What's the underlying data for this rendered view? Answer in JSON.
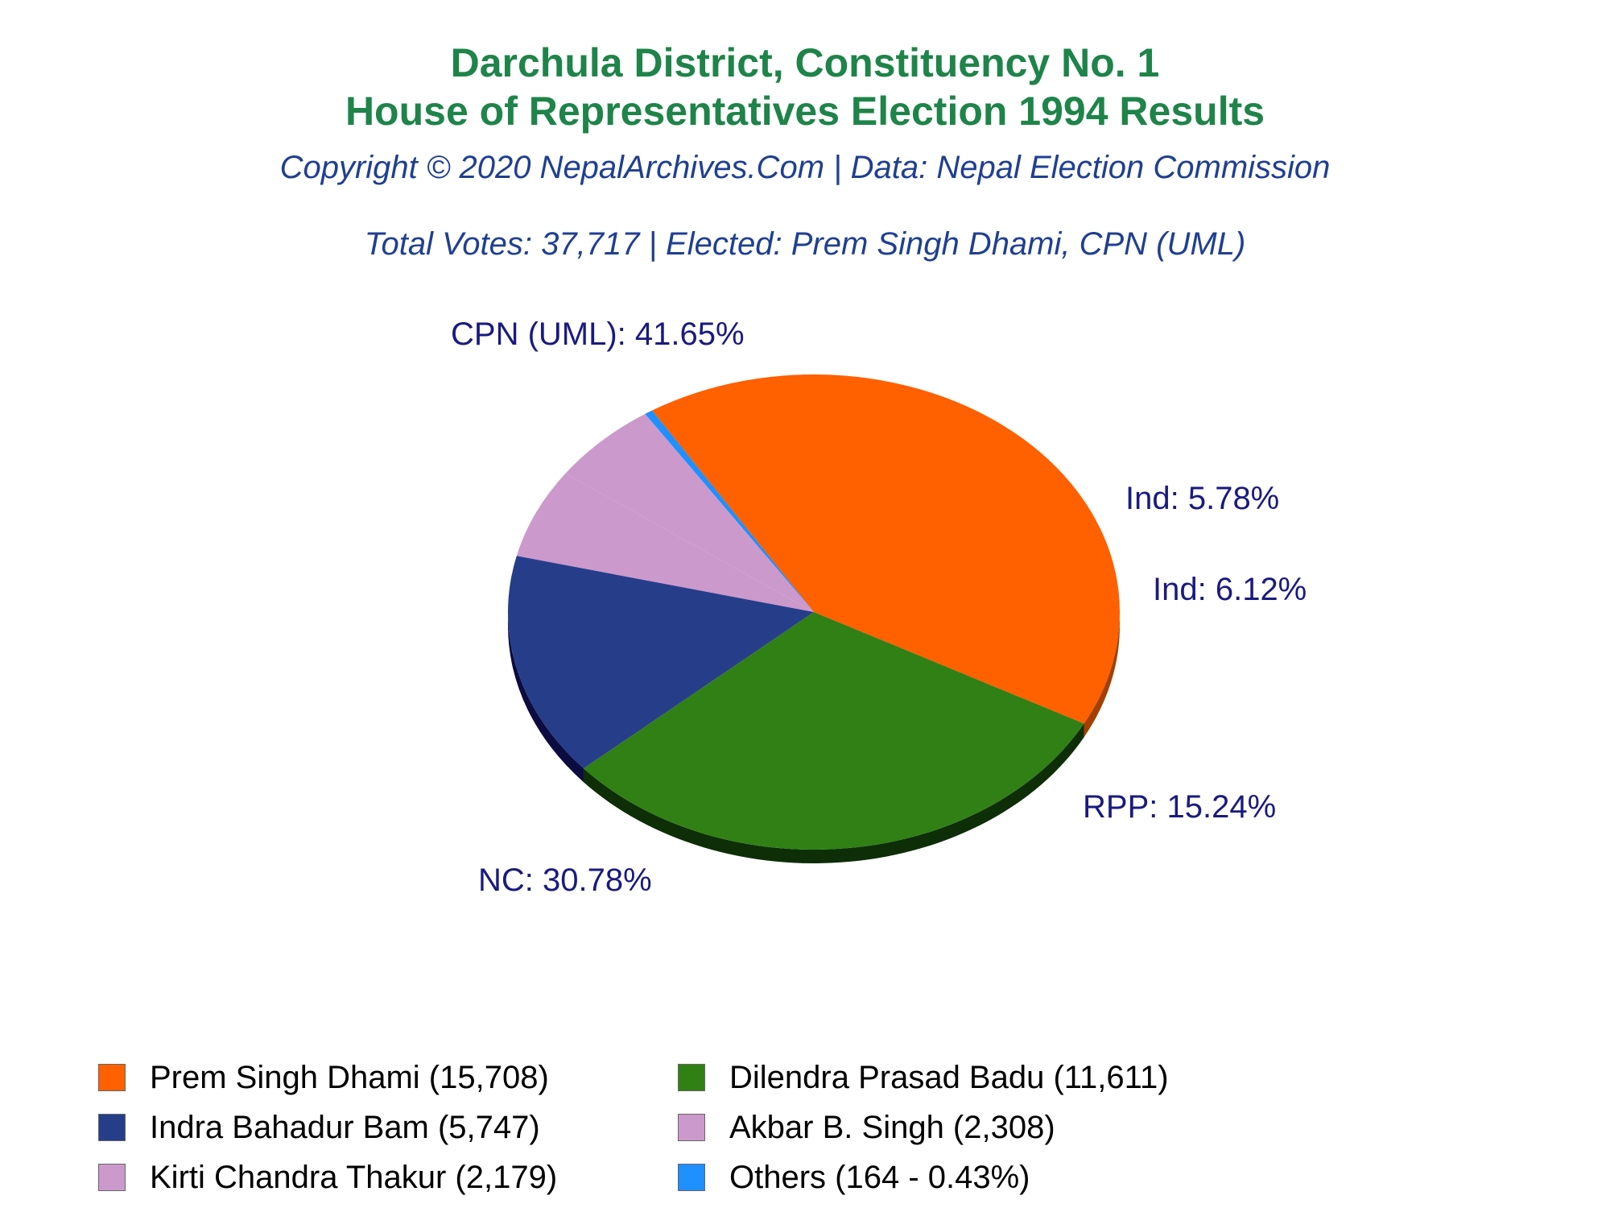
{
  "header": {
    "title_line1": "Darchula District, Constituency No. 1",
    "title_line2": "House of Representatives Election 1994 Results",
    "subtitle": "Copyright © 2020 NepalArchives.Com | Data: Nepal Election Commission",
    "summary": "Total Votes: 37,717 | Elected: Prem Singh Dhami, CPN (UML)"
  },
  "chart_data": {
    "type": "pie",
    "total_votes": 37717,
    "slices": [
      {
        "candidate": "Prem Singh Dhami",
        "party": "CPN (UML)",
        "votes": 15708,
        "percent": 41.65,
        "label": "CPN (UML): 41.65%",
        "legend": "Prem Singh Dhami (15,708)",
        "color": "#ff6000",
        "side": "#a34000"
      },
      {
        "candidate": "Others",
        "party": "Others",
        "votes": 164,
        "percent": 0.43,
        "label": "",
        "legend": "Others (164 - 0.43%)",
        "color": "#1e90ff",
        "side": "#0a4a8c"
      },
      {
        "candidate": "Kirti Chandra Thakur",
        "party": "Ind",
        "votes": 2179,
        "percent": 5.78,
        "label": "Ind: 5.78%",
        "legend": "Kirti Chandra Thakur (2,179)",
        "color": "#cc99cc",
        "side": "#6e4a6e"
      },
      {
        "candidate": "Akbar B. Singh",
        "party": "Ind",
        "votes": 2308,
        "percent": 6.12,
        "label": "Ind: 6.12%",
        "legend": "Akbar B. Singh (2,308)",
        "color": "#cc99cc",
        "side": "#6e4a6e"
      },
      {
        "candidate": "Indra Bahadur Bam",
        "party": "RPP",
        "votes": 5747,
        "percent": 15.24,
        "label": "RPP: 15.24%",
        "legend": "Indra Bahadur Bam (5,747)",
        "color": "#263e8a",
        "side": "#0c0c40"
      },
      {
        "candidate": "Dilendra Prasad Badu",
        "party": "NC",
        "votes": 11611,
        "percent": 30.78,
        "label": "NC: 30.78%",
        "legend": "Dilendra Prasad Badu (11,611)",
        "color": "#318015",
        "side": "#0d2e06"
      }
    ]
  },
  "legend": {
    "items": [
      {
        "text": "Prem Singh Dhami (15,708)",
        "color": "#ff6000"
      },
      {
        "text": "Dilendra Prasad Badu (11,611)",
        "color": "#318015"
      },
      {
        "text": "Indra Bahadur Bam (5,747)",
        "color": "#263e8a"
      },
      {
        "text": "Akbar B. Singh (2,308)",
        "color": "#cc99cc"
      },
      {
        "text": "Kirti Chandra Thakur (2,179)",
        "color": "#cc99cc"
      },
      {
        "text": "Others (164 - 0.43%)",
        "color": "#1e90ff"
      }
    ]
  }
}
